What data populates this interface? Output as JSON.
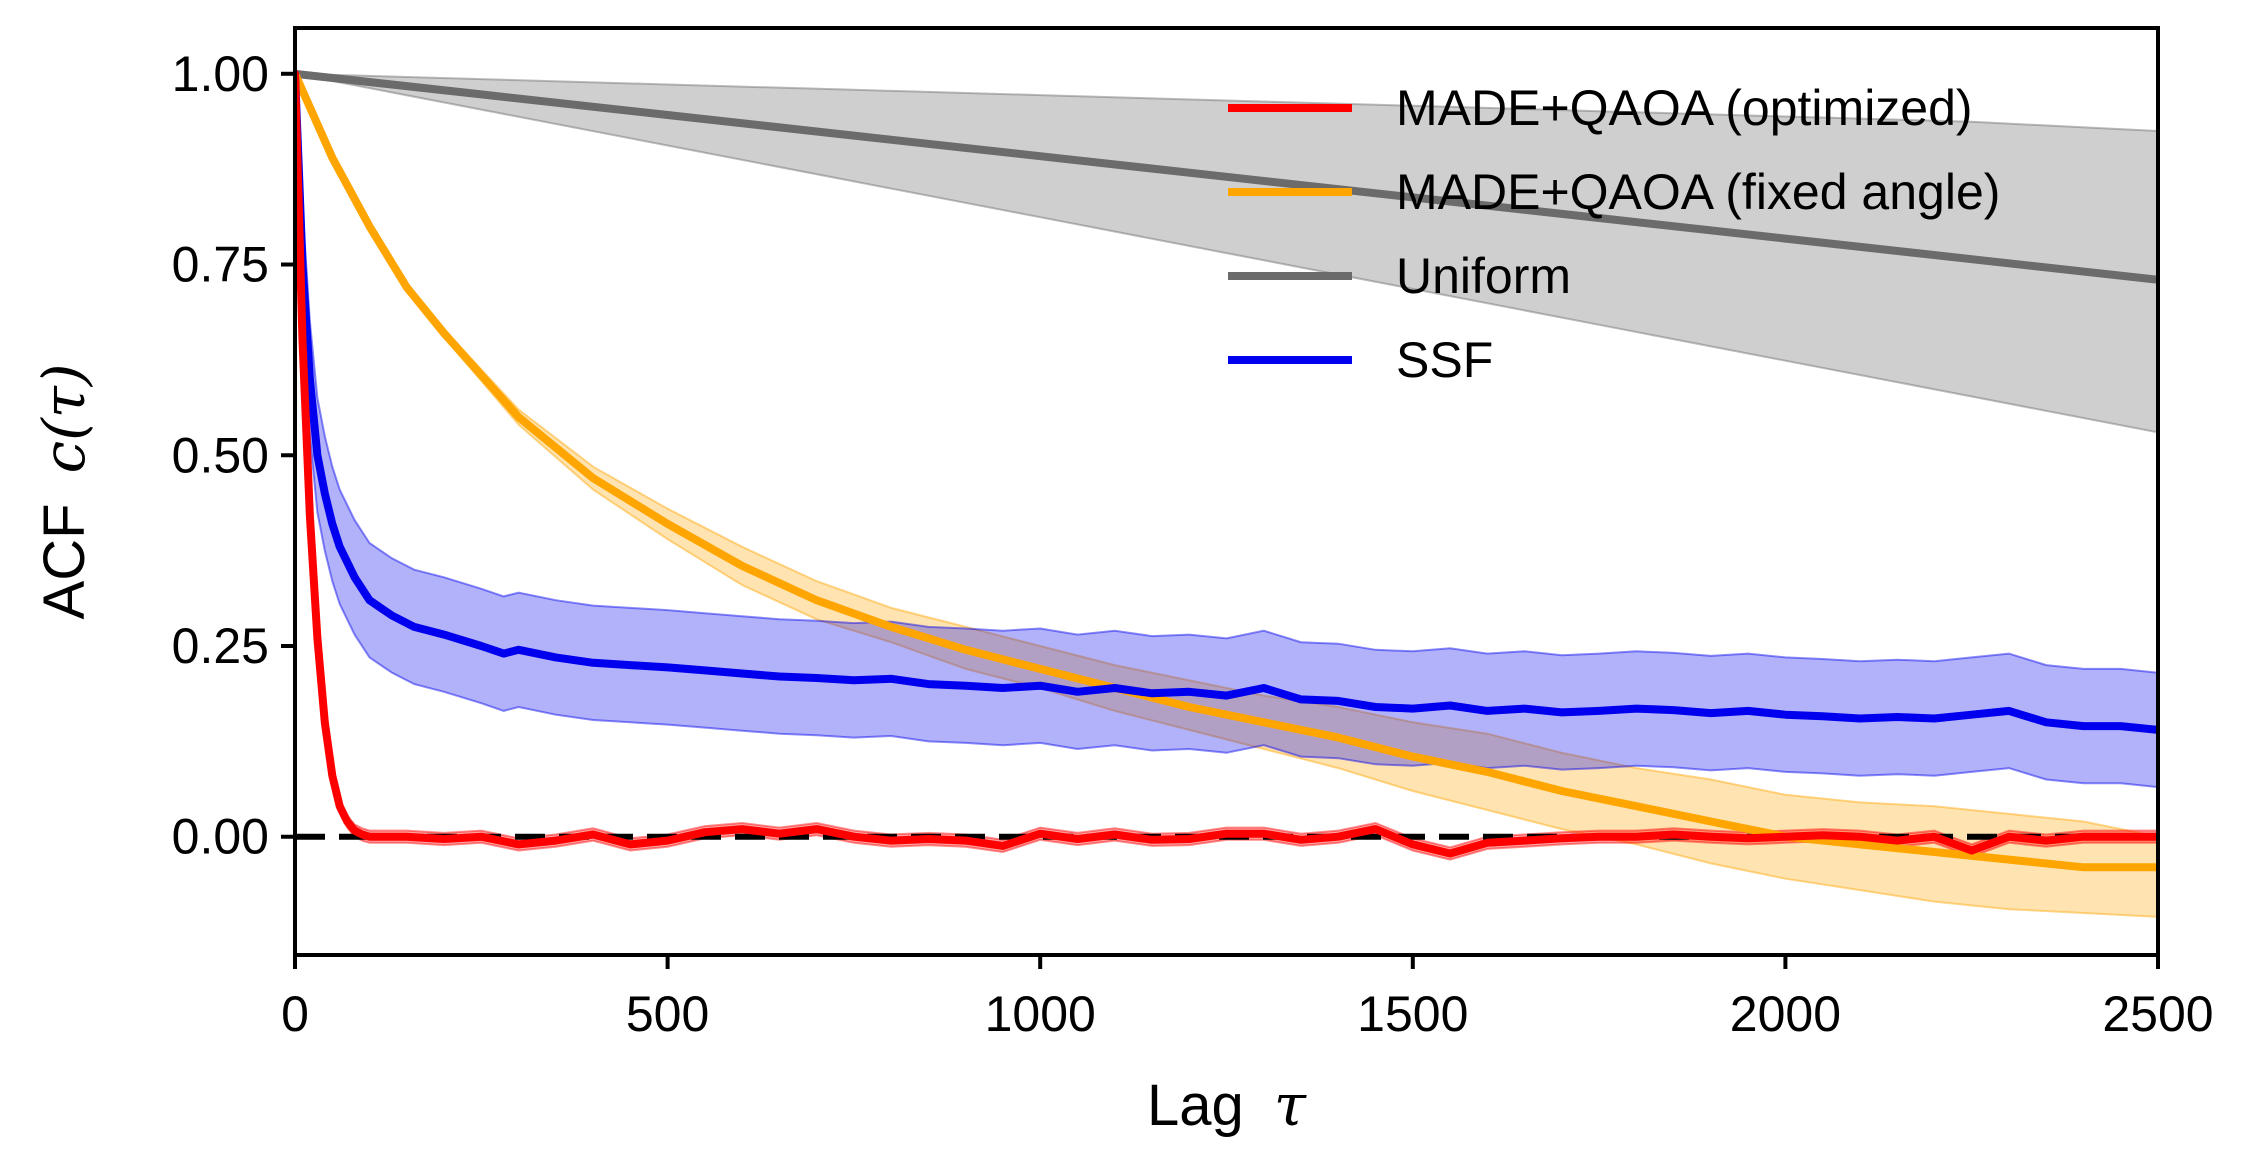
{
  "chart_data": {
    "type": "line",
    "title": "",
    "xlabel": {
      "main": "Lag",
      "symbol": "τ"
    },
    "ylabel": {
      "main": "ACF",
      "symbol": "c(τ)"
    },
    "xlim": [
      0,
      2500
    ],
    "ylim": [
      -0.155,
      1.06
    ],
    "xticks": [
      0,
      500,
      1000,
      1500,
      2000,
      2500
    ],
    "xtick_labels": [
      "0",
      "500",
      "1000",
      "1500",
      "2000",
      "2500"
    ],
    "yticks": [
      0.0,
      0.25,
      0.5,
      0.75,
      1.0
    ],
    "ytick_labels": [
      "0.00",
      "0.25",
      "0.50",
      "0.75",
      "1.00"
    ],
    "grid": false,
    "legend_position": "top-right",
    "reference_line": {
      "y": 0,
      "style": "dashed",
      "color": "#000000"
    },
    "series": [
      {
        "name": "MADE+QAOA (optimized)",
        "color": "#ff0000",
        "x": [
          0,
          10,
          20,
          30,
          40,
          50,
          60,
          70,
          80,
          90,
          100,
          150,
          200,
          250,
          300,
          350,
          400,
          450,
          500,
          550,
          600,
          650,
          700,
          750,
          800,
          850,
          900,
          950,
          1000,
          1050,
          1100,
          1150,
          1200,
          1250,
          1300,
          1350,
          1400,
          1450,
          1500,
          1550,
          1600,
          1650,
          1700,
          1750,
          1800,
          1850,
          1900,
          1950,
          2000,
          2050,
          2100,
          2150,
          2200,
          2250,
          2300,
          2350,
          2400,
          2450,
          2500
        ],
        "y": [
          1.0,
          0.65,
          0.42,
          0.26,
          0.15,
          0.08,
          0.04,
          0.02,
          0.008,
          0.003,
          0.0,
          0.0,
          -0.003,
          0.0,
          -0.01,
          -0.005,
          0.003,
          -0.01,
          -0.005,
          0.006,
          0.01,
          0.004,
          0.01,
          0.0,
          -0.005,
          -0.003,
          -0.005,
          -0.012,
          0.004,
          -0.003,
          0.003,
          -0.004,
          -0.003,
          0.004,
          0.004,
          -0.004,
          0.0,
          0.01,
          -0.01,
          -0.022,
          -0.008,
          -0.005,
          -0.002,
          0.0,
          0.0,
          0.003,
          0.0,
          -0.002,
          0.0,
          0.002,
          0.0,
          -0.005,
          0.0,
          -0.018,
          0.0,
          -0.005,
          0.0,
          0.0,
          0.0
        ],
        "band_halfwidth": 0.008
      },
      {
        "name": "MADE+QAOA (fixed angle)",
        "color": "#ffa500",
        "x": [
          0,
          50,
          100,
          150,
          200,
          300,
          400,
          500,
          600,
          700,
          800,
          900,
          1000,
          1100,
          1200,
          1300,
          1400,
          1500,
          1600,
          1700,
          1800,
          1900,
          2000,
          2100,
          2200,
          2300,
          2400,
          2500
        ],
        "y": [
          1.0,
          0.89,
          0.8,
          0.72,
          0.66,
          0.55,
          0.47,
          0.41,
          0.355,
          0.31,
          0.275,
          0.245,
          0.22,
          0.195,
          0.17,
          0.15,
          0.13,
          0.105,
          0.085,
          0.06,
          0.04,
          0.02,
          0.0,
          -0.01,
          -0.02,
          -0.03,
          -0.04,
          -0.04
        ],
        "lower": [
          1.0,
          0.885,
          0.795,
          0.715,
          0.655,
          0.54,
          0.455,
          0.39,
          0.33,
          0.285,
          0.255,
          0.22,
          0.195,
          0.165,
          0.14,
          0.115,
          0.09,
          0.06,
          0.035,
          0.01,
          -0.01,
          -0.035,
          -0.055,
          -0.07,
          -0.085,
          -0.095,
          -0.1,
          -0.105
        ],
        "upper": [
          1.0,
          0.895,
          0.805,
          0.725,
          0.665,
          0.56,
          0.485,
          0.43,
          0.38,
          0.335,
          0.3,
          0.275,
          0.25,
          0.225,
          0.205,
          0.185,
          0.17,
          0.15,
          0.135,
          0.11,
          0.09,
          0.075,
          0.055,
          0.045,
          0.04,
          0.03,
          0.02,
          0.0
        ]
      },
      {
        "name": "Uniform",
        "color": "#6b6b6b",
        "x": [
          0,
          250,
          500,
          750,
          1000,
          1250,
          1500,
          1750,
          2000,
          2250,
          2500
        ],
        "y": [
          1.0,
          0.973,
          0.946,
          0.919,
          0.892,
          0.865,
          0.838,
          0.811,
          0.784,
          0.757,
          0.73
        ],
        "lower": [
          1.0,
          0.953,
          0.906,
          0.859,
          0.812,
          0.765,
          0.718,
          0.671,
          0.624,
          0.577,
          0.53
        ],
        "upper": [
          1.0,
          0.993,
          0.986,
          0.979,
          0.972,
          0.965,
          0.958,
          0.951,
          0.944,
          0.937,
          0.925
        ]
      },
      {
        "name": "SSF",
        "color": "#0000ee",
        "x": [
          0,
          5,
          10,
          20,
          30,
          40,
          50,
          60,
          80,
          100,
          130,
          160,
          200,
          250,
          280,
          300,
          350,
          400,
          450,
          500,
          550,
          600,
          650,
          700,
          750,
          800,
          850,
          900,
          950,
          1000,
          1050,
          1100,
          1150,
          1200,
          1250,
          1300,
          1350,
          1400,
          1450,
          1500,
          1550,
          1600,
          1650,
          1700,
          1750,
          1800,
          1850,
          1900,
          1950,
          2000,
          2050,
          2100,
          2150,
          2200,
          2250,
          2300,
          2350,
          2400,
          2450,
          2500
        ],
        "y": [
          1.0,
          0.88,
          0.75,
          0.6,
          0.5,
          0.45,
          0.41,
          0.38,
          0.34,
          0.31,
          0.29,
          0.275,
          0.265,
          0.25,
          0.24,
          0.245,
          0.235,
          0.228,
          0.225,
          0.222,
          0.218,
          0.214,
          0.21,
          0.208,
          0.205,
          0.207,
          0.2,
          0.198,
          0.195,
          0.198,
          0.19,
          0.195,
          0.188,
          0.19,
          0.185,
          0.195,
          0.18,
          0.178,
          0.17,
          0.168,
          0.172,
          0.165,
          0.168,
          0.163,
          0.165,
          0.168,
          0.166,
          0.162,
          0.165,
          0.16,
          0.158,
          0.155,
          0.157,
          0.155,
          0.16,
          0.165,
          0.15,
          0.145,
          0.145,
          0.14
        ],
        "band_halfwidth": 0.075
      }
    ]
  }
}
